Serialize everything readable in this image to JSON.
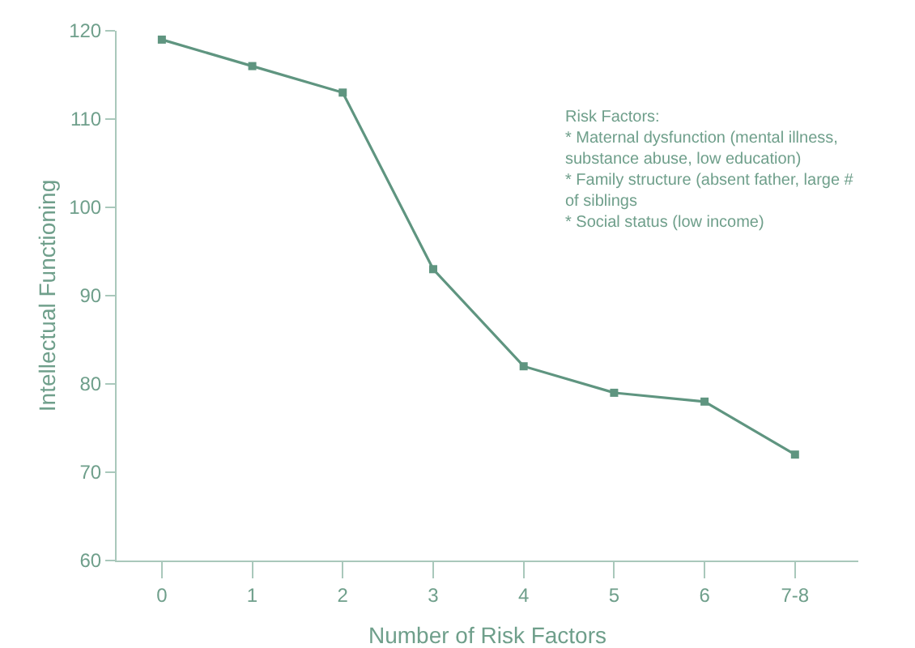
{
  "chart_data": {
    "type": "line",
    "xlabel": "Number of Risk Factors",
    "ylabel": "Intellectual Functioning",
    "categories": [
      "0",
      "1",
      "2",
      "3",
      "4",
      "5",
      "6",
      "7-8"
    ],
    "series": [
      {
        "color": "#5f9580",
        "values": [
          119,
          116,
          113,
          93,
          82,
          79,
          78,
          72
        ]
      }
    ],
    "ylim": [
      60,
      120
    ],
    "yticks": [
      60,
      70,
      80,
      90,
      100,
      110,
      120
    ],
    "grid": false,
    "marker": "square",
    "line_style": "solid",
    "annotations": [
      "Risk Factors:\n* Maternal dysfunction (mental illness,\nsubstance abuse, low education)\n* Family structure (absent father, large #\nof siblings\n* Social status (low income)"
    ]
  }
}
